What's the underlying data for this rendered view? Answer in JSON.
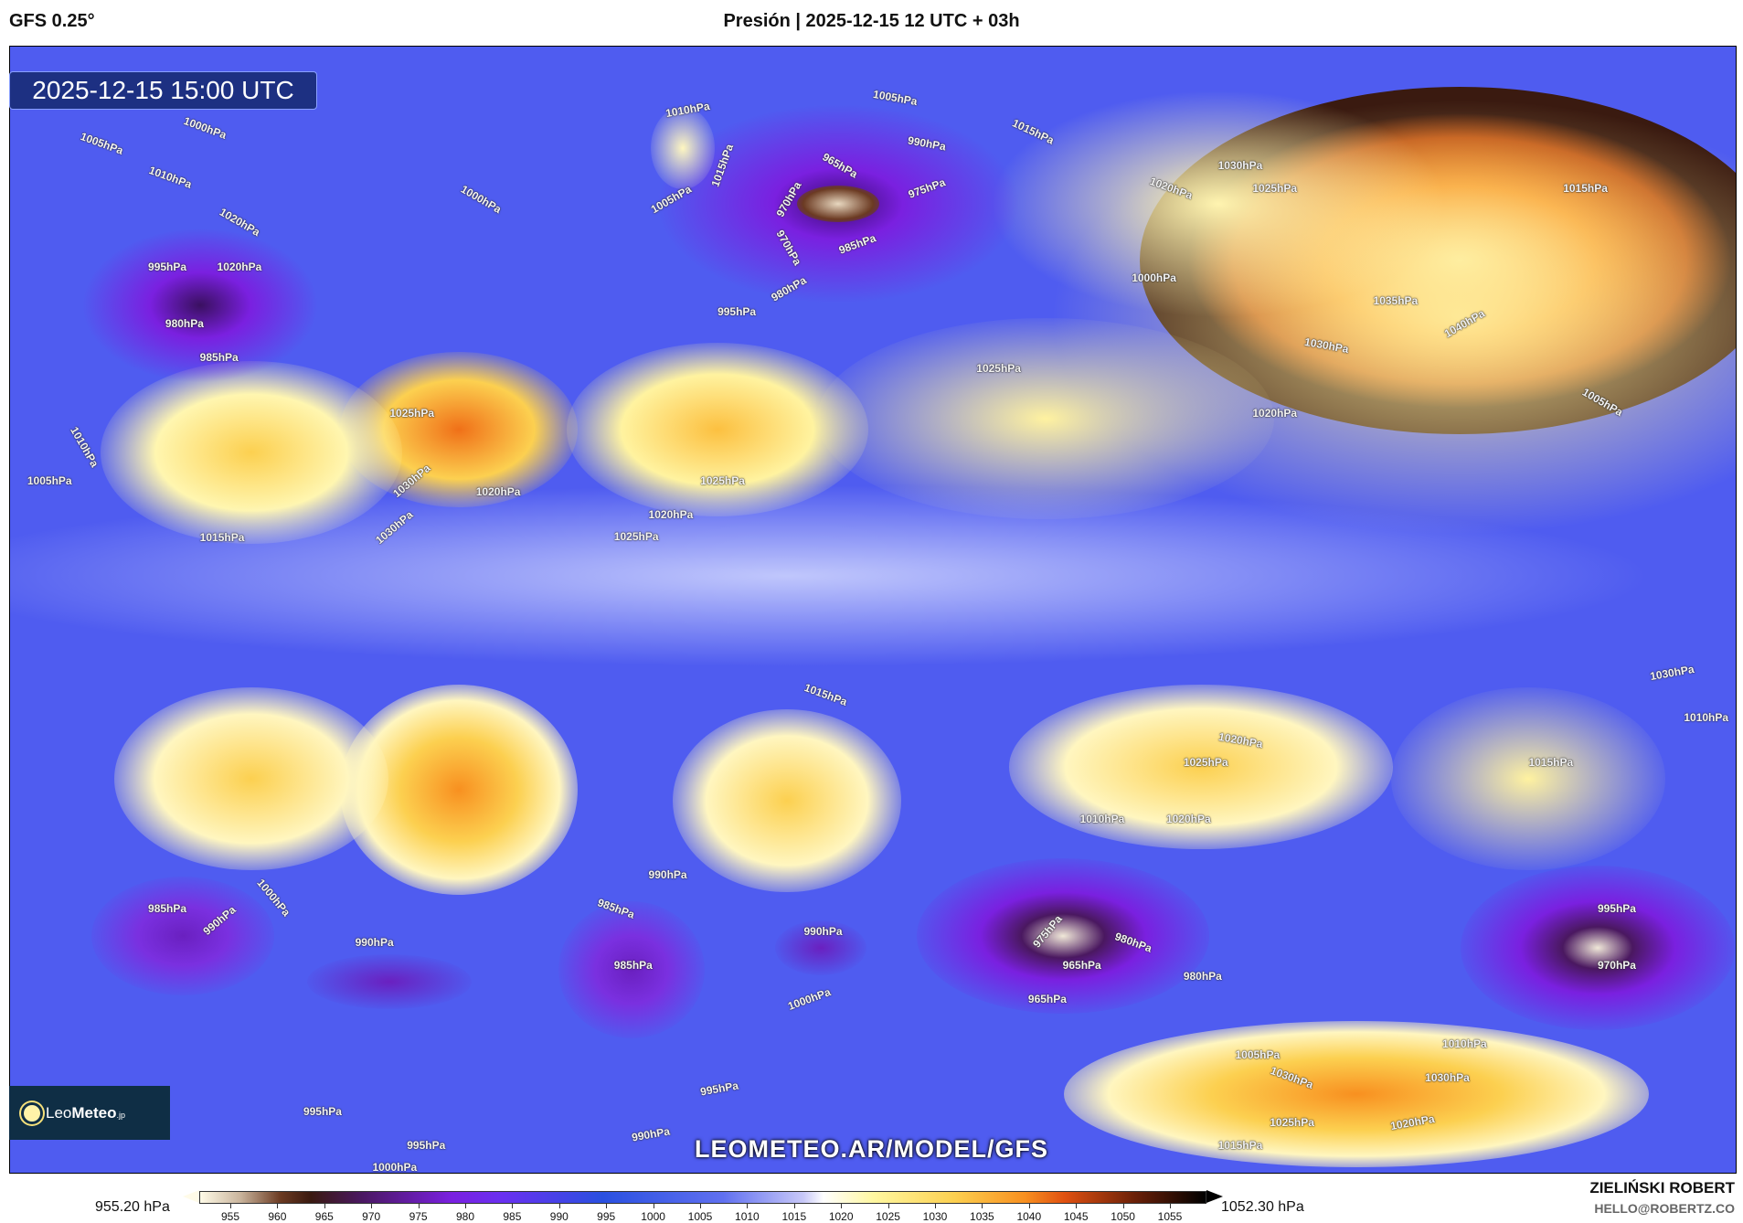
{
  "header": {
    "model": "GFS 0.25°",
    "title": "Presión | 2025-12-15 12 UTC + 03h"
  },
  "map": {
    "valid_time": "2025-12-15 15:00 UTC",
    "watermark": "LEOMETEO.AR/MODEL/GFS",
    "logo": {
      "text_light": "Leo",
      "text_bold": "Meteo",
      "suffix": ".jp"
    },
    "isobar_labels": [
      "1005hPa",
      "1000hPa",
      "1010hPa",
      "1020hPa",
      "995hPa",
      "980hPa",
      "985hPa",
      "970hPa",
      "1010hPa",
      "1015hPa",
      "1005hPa",
      "965hPa",
      "975hPa",
      "970hPa",
      "980hPa",
      "985hPa",
      "990hPa",
      "1000hPa",
      "995hPa",
      "1005hPa",
      "1015hPa",
      "1020hPa",
      "1025hPa",
      "1030hPa",
      "1035hPa",
      "1040hPa",
      "1030hPa",
      "1020hPa",
      "1015hPa",
      "1000hPa",
      "1005hPa",
      "1025hPa",
      "1030hPa",
      "1025hPa",
      "1020hPa",
      "1015hPa",
      "1025hPa",
      "1020hPa",
      "1030hPa",
      "1020hPa",
      "1025hPa",
      "1005hPa",
      "1010hPa",
      "1015hPa",
      "1020hPa",
      "1015hPa",
      "1025hPa",
      "1020hPa",
      "1010hPa",
      "1010hPa",
      "985hPa",
      "990hPa",
      "990hPa",
      "985hPa",
      "990hPa",
      "985hPa",
      "965hPa",
      "975hPa",
      "980hPa",
      "980hPa",
      "965hPa",
      "970hPa",
      "995hPa",
      "1000hPa",
      "990hPa",
      "1000hPa",
      "1030hPa",
      "1030hPa",
      "1025hPa",
      "1020hPa",
      "995hPa",
      "995hPa",
      "995hPa",
      "1000hPa",
      "1015hPa",
      "990hPa",
      "1010hPa",
      "1005hPa",
      "1030hPa"
    ]
  },
  "colorbar": {
    "min_label": "955.20 hPa",
    "max_label": "1052.30 hPa",
    "ticks": [
      "955",
      "960",
      "965",
      "970",
      "975",
      "980",
      "985",
      "990",
      "995",
      "1000",
      "1005",
      "1010",
      "1015",
      "1020",
      "1025",
      "1030",
      "1035",
      "1040",
      "1045",
      "1050",
      "1055"
    ]
  },
  "credit": {
    "author": "ZIELIŃSKI ROBERT",
    "email": "HELLO@ROBERTZ.CO"
  },
  "colors": {
    "low": "#7a20e0",
    "mid": "#4f5cf0",
    "neutral": "#ffffff",
    "high": "#f89020",
    "extreme_high": "#3a1a10"
  }
}
